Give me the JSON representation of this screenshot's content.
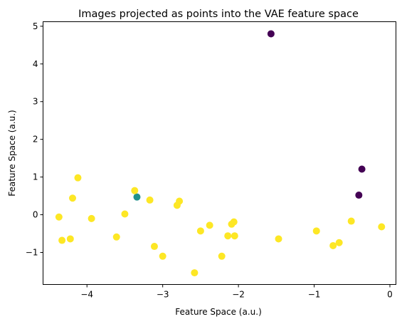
{
  "chart_data": {
    "type": "scatter",
    "title": "Images projected as points into the VAE feature space",
    "xlabel": "Feature Space (a.u.)",
    "ylabel": "Feature Space (a.u.)",
    "xlim": [
      -4.58,
      0.08
    ],
    "ylim": [
      -1.85,
      5.12
    ],
    "xticks": [
      -4,
      -3,
      -2,
      -1,
      0
    ],
    "yticks": [
      -1,
      0,
      1,
      2,
      3,
      4,
      5
    ],
    "xtick_labels": [
      "−4",
      "−3",
      "−2",
      "−1",
      "0"
    ],
    "ytick_labels": [
      "−1",
      "0",
      "1",
      "2",
      "3",
      "4",
      "5"
    ],
    "grid": false,
    "series": [
      {
        "color": "#440154",
        "points": [
          [
            -1.57,
            4.8
          ],
          [
            -0.37,
            1.21
          ],
          [
            -0.41,
            0.52
          ]
        ]
      },
      {
        "color": "#21918c",
        "points": [
          [
            -3.34,
            0.47
          ]
        ]
      },
      {
        "color": "#fde725",
        "points": [
          [
            -4.37,
            -0.06
          ],
          [
            -4.33,
            -0.68
          ],
          [
            -4.22,
            -0.64
          ],
          [
            -4.19,
            0.44
          ],
          [
            -4.12,
            0.98
          ],
          [
            -3.94,
            -0.1
          ],
          [
            -3.61,
            -0.59
          ],
          [
            -3.5,
            0.02
          ],
          [
            -3.37,
            0.64
          ],
          [
            -3.17,
            0.39
          ],
          [
            -3.11,
            -0.84
          ],
          [
            -3.0,
            -1.1
          ],
          [
            -2.81,
            0.25
          ],
          [
            -2.78,
            0.36
          ],
          [
            -2.58,
            -1.54
          ],
          [
            -2.5,
            -0.43
          ],
          [
            -2.38,
            -0.28
          ],
          [
            -2.22,
            -1.1
          ],
          [
            -2.14,
            -0.56
          ],
          [
            -2.09,
            -0.25
          ],
          [
            -2.06,
            -0.19
          ],
          [
            -2.05,
            -0.56
          ],
          [
            -1.47,
            -0.64
          ],
          [
            -0.97,
            -0.43
          ],
          [
            -0.75,
            -0.82
          ],
          [
            -0.67,
            -0.74
          ],
          [
            -0.51,
            -0.17
          ],
          [
            -0.11,
            -0.32
          ]
        ]
      }
    ]
  }
}
